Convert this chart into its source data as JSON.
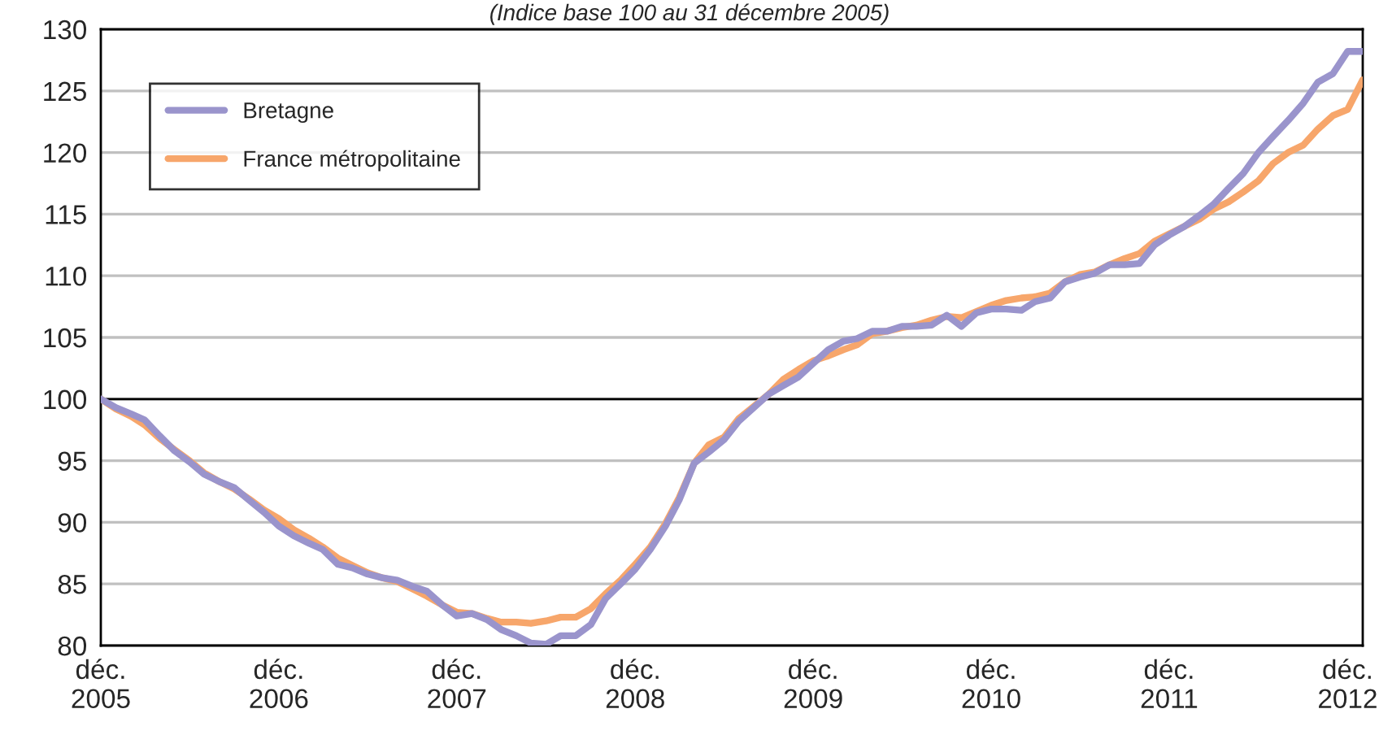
{
  "chart_data": {
    "type": "line",
    "title": "(Indice base 100 au 31 décembre 2005)",
    "x": [
      "2005-12",
      "2006-01",
      "2006-02",
      "2006-03",
      "2006-04",
      "2006-05",
      "2006-06",
      "2006-07",
      "2006-08",
      "2006-09",
      "2006-10",
      "2006-11",
      "2006-12",
      "2007-01",
      "2007-02",
      "2007-03",
      "2007-04",
      "2007-05",
      "2007-06",
      "2007-07",
      "2007-08",
      "2007-09",
      "2007-10",
      "2007-11",
      "2007-12",
      "2008-01",
      "2008-02",
      "2008-03",
      "2008-04",
      "2008-05",
      "2008-06",
      "2008-07",
      "2008-08",
      "2008-09",
      "2008-10",
      "2008-11",
      "2008-12",
      "2009-01",
      "2009-02",
      "2009-03",
      "2009-04",
      "2009-05",
      "2009-06",
      "2009-07",
      "2009-08",
      "2009-09",
      "2009-10",
      "2009-11",
      "2009-12",
      "2010-01",
      "2010-02",
      "2010-03",
      "2010-04",
      "2010-05",
      "2010-06",
      "2010-07",
      "2010-08",
      "2010-09",
      "2010-10",
      "2010-11",
      "2010-12",
      "2011-01",
      "2011-02",
      "2011-03",
      "2011-04",
      "2011-05",
      "2011-06",
      "2011-07",
      "2011-08",
      "2011-09",
      "2011-10",
      "2011-11",
      "2011-12",
      "2012-01",
      "2012-02",
      "2012-03",
      "2012-04",
      "2012-05",
      "2012-06",
      "2012-07",
      "2012-08",
      "2012-09",
      "2012-10",
      "2012-11",
      "2012-12",
      "2013-01"
    ],
    "series": [
      {
        "name": "France métropolitaine",
        "color": "#f7a66b",
        "values": [
          100,
          99.2,
          98.6,
          97.9,
          96.8,
          95.9,
          95.0,
          94.0,
          93.3,
          92.7,
          91.9,
          91.0,
          90.3,
          89.4,
          88.7,
          88.0,
          87.1,
          86.5,
          85.9,
          85.5,
          85.2,
          84.6,
          84.0,
          83.3,
          82.7,
          82.6,
          82.2,
          81.9,
          81.9,
          81.8,
          82.0,
          82.3,
          82.3,
          83.0,
          84.2,
          85.3,
          86.6,
          88.0,
          89.9,
          92.0,
          94.8,
          96.3,
          96.9,
          98.4,
          99.4,
          100.4,
          101.6,
          102.4,
          103.1,
          103.5,
          104.0,
          104.4,
          105.3,
          105.5,
          105.8,
          106.0,
          106.4,
          106.7,
          106.6,
          107.1,
          107.6,
          108.0,
          108.2,
          108.3,
          108.6,
          109.5,
          110.1,
          110.3,
          110.9,
          111.4,
          111.8,
          112.8,
          113.4,
          114.0,
          114.6,
          115.4,
          116.0,
          116.8,
          117.7,
          119.1,
          120.0,
          120.6,
          121.9,
          123.0,
          123.5,
          125.9
        ]
      },
      {
        "name": "Bretagne",
        "color": "#9a94cc",
        "values": [
          100,
          99.3,
          98.8,
          98.3,
          97.0,
          95.8,
          94.9,
          93.9,
          93.3,
          92.8,
          91.8,
          90.8,
          89.7,
          88.9,
          88.3,
          87.8,
          86.6,
          86.3,
          85.8,
          85.5,
          85.3,
          84.8,
          84.4,
          83.3,
          82.4,
          82.6,
          82.1,
          81.3,
          80.8,
          80.2,
          80.1,
          80.8,
          80.8,
          81.7,
          83.8,
          85.0,
          86.2,
          87.8,
          89.7,
          91.8,
          94.8,
          95.7,
          96.7,
          98.2,
          99.3,
          100.4,
          101.1,
          101.8,
          102.9,
          104.0,
          104.7,
          104.9,
          105.5,
          105.5,
          105.9,
          105.9,
          106.0,
          106.8,
          105.9,
          107.0,
          107.3,
          107.3,
          107.2,
          107.9,
          108.2,
          109.5,
          109.9,
          110.2,
          110.9,
          110.9,
          111.0,
          112.5,
          113.3,
          114.0,
          114.9,
          115.8,
          117.1,
          118.3,
          120.0,
          121.3,
          122.6,
          124.0,
          125.7,
          126.4,
          128.2,
          128.2
        ]
      }
    ],
    "xlim": [
      "2005-12",
      "2013-01"
    ],
    "xticks": [
      {
        "value": "2005-12",
        "label": "déc.\n2005"
      },
      {
        "value": "2006-12",
        "label": "déc.\n2006"
      },
      {
        "value": "2007-12",
        "label": "déc.\n2007"
      },
      {
        "value": "2008-12",
        "label": "déc.\n2008"
      },
      {
        "value": "2009-12",
        "label": "déc.\n2009"
      },
      {
        "value": "2010-12",
        "label": "déc.\n2010"
      },
      {
        "value": "2011-12",
        "label": "déc.\n2011"
      },
      {
        "value": "2012-12",
        "label": "déc.\n2012"
      }
    ],
    "ylim": [
      80,
      130
    ],
    "yticks": [
      80,
      85,
      90,
      95,
      100,
      105,
      110,
      115,
      120,
      125,
      130
    ],
    "ref_lines": [
      {
        "axis": "y",
        "value": 100,
        "color": "#000000"
      }
    ],
    "grid": "y",
    "legend": "top left",
    "marker": "none",
    "line_style": "solid"
  }
}
